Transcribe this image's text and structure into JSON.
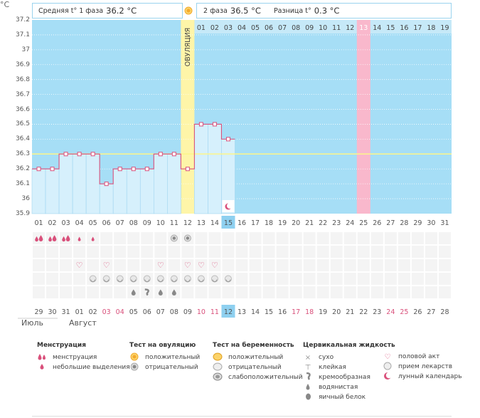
{
  "header": {
    "y_unit": "°C",
    "phase1_label": "Средняя t° 1 фаза",
    "phase1_value": "36.2 °C",
    "phase2_label": "2 фаза",
    "phase2_value": "36.5 °C",
    "diff_label": "Разница t°",
    "diff_value": "0.3 °C"
  },
  "ovulation_label": "ОВУЛЯЦИЯ",
  "chart_data": {
    "type": "area",
    "ylim": [
      35.9,
      37.2
    ],
    "yticks": [
      "37.2",
      "37.1",
      "37",
      "36.9",
      "36.8",
      "36.7",
      "36.6",
      "36.5",
      "36.4",
      "36.3",
      "36.2",
      "36.1",
      "36",
      "35.9"
    ],
    "cover_line": 36.3,
    "cycle_days": [
      "01",
      "02",
      "03",
      "04",
      "05",
      "06",
      "07",
      "08",
      "09",
      "10",
      "11",
      "12",
      "13",
      "14",
      "15",
      "16",
      "17",
      "18",
      "19",
      "20",
      "21",
      "22",
      "23",
      "24",
      "25",
      "26",
      "27",
      "28",
      "29",
      "30",
      "31"
    ],
    "current_day": "15",
    "ovulation_day": "12",
    "post_ovulation_days": [
      "01",
      "02",
      "03",
      "04",
      "05",
      "06",
      "07",
      "08",
      "09",
      "10",
      "11",
      "12",
      "13",
      "14",
      "15",
      "16",
      "17",
      "18",
      "19"
    ],
    "highlight_post_day": "13",
    "temperatures": [
      36.2,
      36.2,
      36.3,
      36.3,
      36.3,
      36.1,
      36.2,
      36.2,
      36.2,
      36.3,
      36.3,
      36.2,
      36.5,
      36.5,
      36.4
    ],
    "dates": [
      "29",
      "30",
      "31",
      "01",
      "02",
      "03",
      "04",
      "05",
      "06",
      "07",
      "08",
      "09",
      "10",
      "11",
      "12",
      "13",
      "14",
      "15",
      "16",
      "17",
      "18",
      "19",
      "20",
      "21",
      "22",
      "23",
      "24",
      "25",
      "26",
      "27",
      "28"
    ],
    "dates_red": [
      "03",
      "04",
      "10",
      "11",
      "17",
      "18",
      "24",
      "25"
    ],
    "current_date": "12",
    "colors": {
      "background": "#a6def6",
      "fill": "#d6f0fc",
      "line": "#d9507b",
      "ovulation": "#fef5a8",
      "highlight": "#f9b8cc",
      "coverline": "#fcf58a",
      "accent": "#3b9bd4"
    }
  },
  "markers": {
    "menstruation": [
      "heavy",
      "heavy",
      "heavy",
      "light",
      "light"
    ],
    "ovulation_test_days": [
      "11",
      "12"
    ],
    "intercourse_days": [
      "04",
      "06",
      "10",
      "12",
      "13",
      "14"
    ],
    "pregnancy_test_days": [
      "05",
      "06",
      "07",
      "08",
      "09",
      "10",
      "11",
      "12",
      "13",
      "14",
      "15"
    ],
    "fluid_days": {
      "08": "watery",
      "09": "creamy",
      "10": "watery",
      "11": "watery"
    },
    "moon_day": "15"
  },
  "months": {
    "july": "Июль",
    "august": "Август"
  },
  "legend": {
    "menstruation": {
      "title": "Менструация",
      "items": [
        "менструация",
        "небольшие выделения"
      ]
    },
    "ovulation_test": {
      "title": "Тест на овуляцию",
      "items": [
        "положительный",
        "отрицательный"
      ]
    },
    "pregnancy_test": {
      "title": "Тест на беременность",
      "items": [
        "положительный",
        "отрицательный",
        "слабоположительный"
      ]
    },
    "cervical_fluid": {
      "title": "Цервикальная жидкость",
      "items": [
        "сухо",
        "клейкая",
        "кремообразная",
        "водянистая",
        "яичный белок"
      ]
    },
    "other": {
      "items": [
        "половой акт",
        "прием лекарств",
        "лунный календарь"
      ]
    }
  }
}
